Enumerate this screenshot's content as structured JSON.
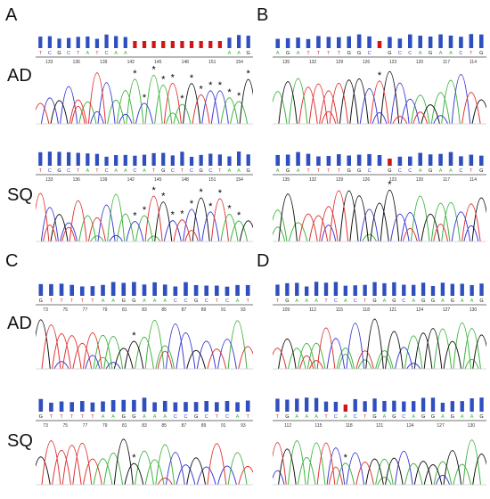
{
  "panels": [
    {
      "id": "A",
      "rows": [
        {
          "label": "AD",
          "seq": "TCGCTATCAA??????????AAG",
          "ticks": [
            "133",
            "136",
            "139",
            "142",
            "145",
            "148",
            "151",
            "154"
          ],
          "red_from": 10,
          "red_to": 20,
          "stars": 13
        },
        {
          "label": "SQ",
          "seq": "TCGCTATCAACATGCTCGCTAAG",
          "ticks": [
            "133",
            "136",
            "139",
            "142",
            "145",
            "148",
            "151",
            "154"
          ],
          "red_from": -1,
          "red_to": -1,
          "stars": 12
        }
      ]
    },
    {
      "id": "B",
      "rows": [
        {
          "label": "",
          "seq": "AGATTTTGGC?GCCAGAACTG",
          "ticks": [
            "135",
            "132",
            "129",
            "126",
            "123",
            "120",
            "117",
            "114"
          ],
          "red_from": 10,
          "red_to": 11,
          "stars": 1
        },
        {
          "label": "",
          "seq": "AGATTTTGGC?GCCAGAACTG",
          "ticks": [
            "135",
            "132",
            "129",
            "126",
            "123",
            "120",
            "117",
            "114"
          ],
          "red_from": 11,
          "red_to": 12,
          "stars": 1
        }
      ]
    },
    {
      "id": "C",
      "rows": [
        {
          "label": "AD",
          "seq": "GTTTTTAAGGAAACCGCTCAT",
          "ticks": [
            "73",
            "75",
            "77",
            "79",
            "81",
            "83",
            "85",
            "87",
            "89",
            "91",
            "93"
          ],
          "red_from": -1,
          "red_to": -1,
          "stars": 1
        },
        {
          "label": "SQ",
          "seq": "GTTTTTAAGGAAACCGCTCAT",
          "ticks": [
            "73",
            "75",
            "77",
            "79",
            "81",
            "83",
            "85",
            "87",
            "89",
            "91",
            "93"
          ],
          "red_from": -1,
          "red_to": -1,
          "stars": 1
        }
      ]
    },
    {
      "id": "D",
      "rows": [
        {
          "label": "",
          "seq": "TGAAATCACTGAGCAGGAGAAG",
          "ticks": [
            "109",
            "112",
            "115",
            "118",
            "121",
            "124",
            "127",
            "130"
          ],
          "red_from": -1,
          "red_to": -1,
          "stars": 0
        },
        {
          "label": "",
          "seq": "TGAAATCACTGAGCAGGAGAAG",
          "ticks": [
            "112",
            "115",
            "118",
            "121",
            "124",
            "127",
            "130"
          ],
          "red_from": 7,
          "red_to": 8,
          "stars": 1
        }
      ]
    }
  ],
  "colors": {
    "A": "#3cb33c",
    "C": "#3a3ad6",
    "G": "#111111",
    "T": "#e03030",
    "bar": "#2f4fbf",
    "bar_red": "#d01515"
  }
}
